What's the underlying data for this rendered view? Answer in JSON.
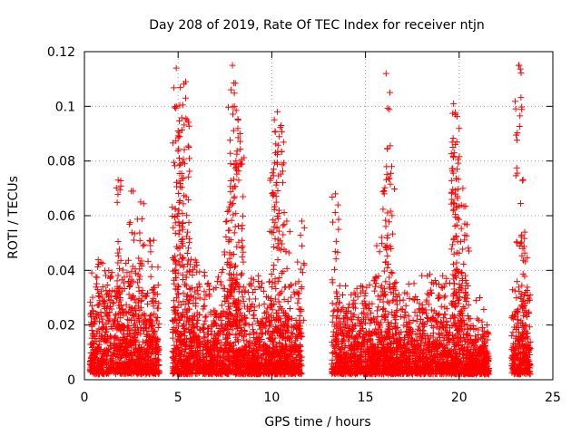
{
  "chart_data": {
    "type": "scatter",
    "title": "Day 208 of 2019, Rate Of TEC Index for receiver ntjn",
    "xlabel": "GPS time / hours",
    "ylabel": "ROTI / TECUs",
    "xlim": [
      0,
      25
    ],
    "ylim": [
      0,
      0.12
    ],
    "xticks": [
      0,
      5,
      10,
      15,
      20,
      25
    ],
    "xtick_labels": [
      "0",
      "5",
      "10",
      "15",
      "20",
      "25"
    ],
    "yticks": [
      0,
      0.02,
      0.04,
      0.06,
      0.08,
      0.1,
      0.12
    ],
    "ytick_labels": [
      "0",
      "0.02",
      "0.04",
      "0.06",
      "0.08",
      "0.1",
      "0.12"
    ],
    "grid": true,
    "marker": "+",
    "color": "#ff0000",
    "clusters": [
      {
        "x_range": [
          0.3,
          4.0
        ],
        "typical_max": 0.025,
        "peaks": [
          [
            1.8,
            0.073
          ],
          [
            2.6,
            0.069
          ],
          [
            3.0,
            0.065
          ],
          [
            3.7,
            0.051
          ],
          [
            1.3,
            0.04
          ]
        ]
      },
      {
        "x_range": [
          4.7,
          6.2
        ],
        "typical_max": 0.025,
        "peaks": [
          [
            4.9,
            0.114
          ],
          [
            4.9,
            0.1
          ],
          [
            5.0,
            0.091
          ],
          [
            5.4,
            0.109
          ],
          [
            5.4,
            0.103
          ],
          [
            5.5,
            0.054
          ]
        ]
      },
      {
        "x_range": [
          6.3,
          9.3
        ],
        "typical_max": 0.022,
        "peaks": [
          [
            7.9,
            0.115
          ],
          [
            8.0,
            0.1
          ],
          [
            8.2,
            0.095
          ],
          [
            8.3,
            0.09
          ],
          [
            7.8,
            0.079
          ],
          [
            7.6,
            0.058
          ]
        ]
      },
      {
        "x_range": [
          9.3,
          11.6
        ],
        "typical_max": 0.02,
        "peaks": [
          [
            10.3,
            0.098
          ],
          [
            10.5,
            0.093
          ],
          [
            10.2,
            0.083
          ],
          [
            10.1,
            0.077
          ],
          [
            10.8,
            0.058
          ],
          [
            11.6,
            0.058
          ]
        ]
      },
      {
        "x_range": [
          13.2,
          17.5
        ],
        "typical_max": 0.02,
        "peaks": [
          [
            13.4,
            0.068
          ],
          [
            16.1,
            0.112
          ],
          [
            16.4,
            0.078
          ],
          [
            16.0,
            0.068
          ],
          [
            15.6,
            0.049
          ]
        ]
      },
      {
        "x_range": [
          17.5,
          20.2
        ],
        "typical_max": 0.022,
        "peaks": [
          [
            19.7,
            0.101
          ],
          [
            19.8,
            0.097
          ],
          [
            19.8,
            0.086
          ],
          [
            19.9,
            0.067
          ],
          [
            20.2,
            0.07
          ],
          [
            20.3,
            0.057
          ]
        ]
      },
      {
        "x_range": [
          20.2,
          21.6
        ],
        "typical_max": 0.012,
        "peaks": [
          [
            20.4,
            0.031
          ],
          [
            21.1,
            0.03
          ]
        ]
      },
      {
        "x_range": [
          22.8,
          23.8
        ],
        "typical_max": 0.02,
        "peaks": [
          [
            23.2,
            0.115
          ],
          [
            23.5,
            0.054
          ],
          [
            23.4,
            0.048
          ]
        ]
      }
    ]
  }
}
